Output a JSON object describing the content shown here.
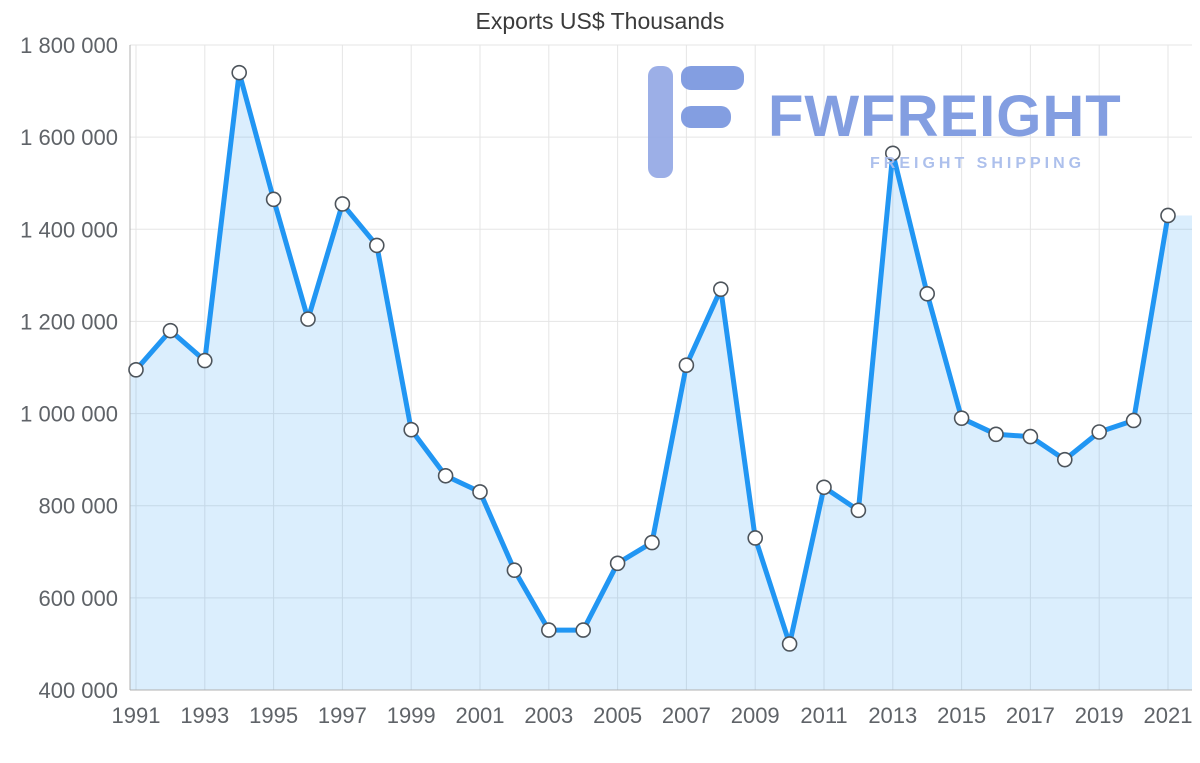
{
  "chart_data": {
    "type": "area",
    "title": "Exports US$ Thousands",
    "xlabel": "",
    "ylabel": "",
    "legend": "none",
    "grid": true,
    "x": [
      1991,
      1992,
      1993,
      1994,
      1995,
      1996,
      1997,
      1998,
      1999,
      2000,
      2001,
      2002,
      2003,
      2004,
      2005,
      2006,
      2007,
      2008,
      2009,
      2010,
      2011,
      2012,
      2013,
      2014,
      2015,
      2016,
      2017,
      2018,
      2019,
      2020,
      2021
    ],
    "series": [
      {
        "name": "Exports US$ Thousands",
        "values": [
          1095000,
          1180000,
          1115000,
          1740000,
          1465000,
          1205000,
          1455000,
          1365000,
          965000,
          865000,
          830000,
          660000,
          530000,
          530000,
          675000,
          720000,
          1105000,
          1270000,
          730000,
          500000,
          840000,
          790000,
          1565000,
          1260000,
          990000,
          955000,
          950000,
          900000,
          960000,
          985000,
          1430000
        ]
      }
    ],
    "ylim": [
      400000,
      1800000
    ],
    "y_ticks": {
      "values": [
        400000,
        600000,
        800000,
        1000000,
        1200000,
        1400000,
        1600000,
        1800000
      ],
      "labels": [
        "400 000",
        "600 000",
        "800 000",
        "1 000 000",
        "1 200 000",
        "1 400 000",
        "1 600 000",
        "1 800 000"
      ]
    },
    "x_tick_labels": [
      "1991",
      "1993",
      "1995",
      "1997",
      "1999",
      "2001",
      "2003",
      "2005",
      "2007",
      "2009",
      "2011",
      "2013",
      "2015",
      "2017",
      "2019",
      "2021"
    ],
    "colors": {
      "line": "#2196f3",
      "fill": "rgba(33,150,243,0.16)",
      "marker_fill": "#ffffff",
      "marker_stroke": "#4d545b",
      "gridline": "#e5e5e5",
      "axis": "#b0b0b0",
      "tick_text": "#5f6368",
      "title_text": "#3b3b3b"
    }
  },
  "watermark": {
    "brand": "FWFREIGHT",
    "tagline": "FREIGHT SHIPPING",
    "brand_color": "#7d99e0",
    "tagline_color": "#a9bdec"
  }
}
